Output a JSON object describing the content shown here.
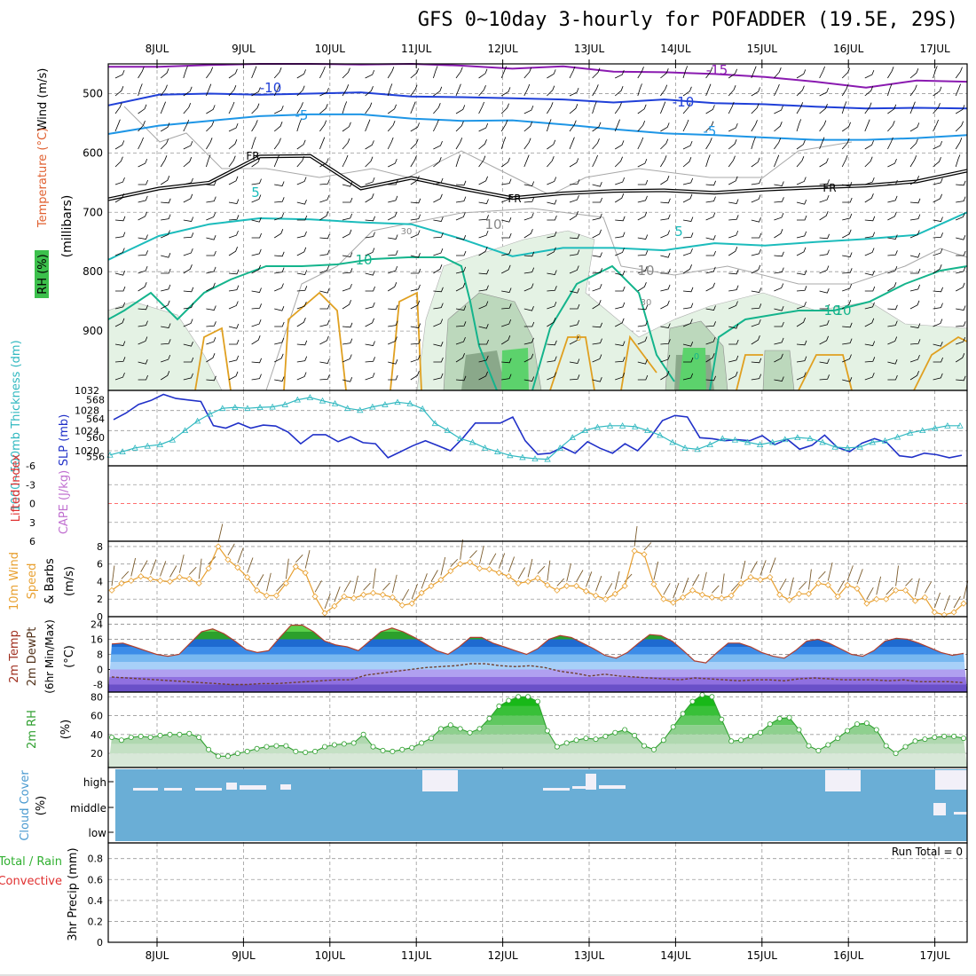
{
  "title": "GFS 0~10day 3-hourly for POFADDER (19.5E, 29S)",
  "colors": {
    "frame": "#000000",
    "grid": "#9a9a9a",
    "slp": "#2030c8",
    "thickness": "#30b8c0",
    "temp_minus15": "#8a1ab0",
    "temp_minus10": "#2040d8",
    "temp_minus5": "#1e96e6",
    "temp_plus5": "#1cbcbc",
    "temp_plus10": "#14b48c",
    "temp_warm": "#e0a020",
    "freezing": "#000000",
    "rh_light": "#e4f2e4",
    "rh_mid": "#bcd8bc",
    "rh_dark": "#8aa88a",
    "rh_sat": "#5cd26c",
    "wind_speed": "#e8a030",
    "barb": "#7a5a2a",
    "temp_line": "#b04030",
    "dewpoint": "#704030",
    "rh2m_line": "#30a030",
    "cloud_fill": "#6aaed6",
    "cloud_gap": "#f2f0f8",
    "lifted_zero": "#ff4040"
  },
  "chart_data": [
    {
      "panel": "upper_air",
      "type": "contour",
      "ylabel_parts": [
        "Wind (m/s)",
        "Temperature (°C)",
        "RH (%)"
      ],
      "ylabel_units": "(millibars)",
      "yticks": [
        500,
        600,
        700,
        800,
        900
      ],
      "ylim": [
        1000,
        450
      ],
      "contour_labels": [
        "-15",
        "-10",
        "-10",
        "-5",
        "-5",
        "FR",
        "FR",
        "FR",
        "5",
        "5",
        "10",
        "10",
        "10",
        "30",
        "30",
        "10",
        "10",
        "0",
        "0"
      ],
      "isotherms": [
        {
          "name": "-15",
          "p": [
            455,
            455,
            452,
            450,
            450,
            451,
            450,
            453,
            458,
            454,
            463,
            464,
            467,
            472,
            480,
            490,
            478,
            480
          ]
        },
        {
          "name": "-10",
          "p": [
            520,
            502,
            500,
            502,
            500,
            498,
            505,
            506,
            508,
            510,
            515,
            510,
            516,
            518,
            522,
            525,
            524,
            525
          ]
        },
        {
          "name": "-5",
          "p": [
            568,
            554,
            546,
            538,
            535,
            535,
            542,
            546,
            545,
            552,
            560,
            567,
            570,
            574,
            578,
            578,
            575,
            570
          ]
        },
        {
          "name": "FR",
          "p": [
            678,
            660,
            650,
            606,
            605,
            660,
            642,
            660,
            676,
            668,
            664,
            663,
            667,
            662,
            658,
            655,
            648,
            630
          ]
        },
        {
          "name": "5",
          "p": [
            780,
            740,
            720,
            710,
            712,
            717,
            720,
            745,
            774,
            760,
            760,
            764,
            752,
            756,
            750,
            745,
            738,
            700
          ]
        }
      ]
    },
    {
      "panel": "slp_thickness",
      "type": "line",
      "ylabel_left": "1000~500mb Thickness (dm)",
      "ylabel_right": "SLP (mb)",
      "yticks_left": [
        556,
        560,
        564,
        568
      ],
      "yticks_right": [
        1020,
        1024,
        1028,
        1032
      ],
      "ylim_left": [
        554,
        570
      ],
      "ylim_right": [
        1017,
        1032
      ],
      "series": [
        {
          "name": "SLP (mb)",
          "values": [
            1026.2,
            1027.5,
            1029.2,
            1030,
            1031.2,
            1030.4,
            1030.1,
            1029.8,
            1025,
            1024.5,
            1025.5,
            1024.5,
            1025.1,
            1024.9,
            1023.7,
            1021.4,
            1023.2,
            1023.2,
            1021.8,
            1022.8,
            1021.6,
            1021.4,
            1018.6,
            1019.8,
            1021,
            1022,
            1021,
            1020,
            1022.5,
            1025.5,
            1025.5,
            1025.5,
            1026.7,
            1022,
            1019.3,
            1019.5,
            1020.7,
            1019.5,
            1021.8,
            1020.5,
            1019.5,
            1021.4,
            1020,
            1022.6,
            1026,
            1027,
            1026.7,
            1022.6,
            1022.4,
            1022,
            1022.2,
            1022,
            1023,
            1021.2,
            1022.3,
            1020.3,
            1021.1,
            1023.1,
            1020.7,
            1019.8,
            1021.5,
            1022.4,
            1021.6,
            1019,
            1018.7,
            1019.5,
            1019.2,
            1018.6,
            1019.1
          ]
        },
        {
          "name": "Thickness (dm)",
          "values": [
            556.3,
            557,
            557.8,
            558.2,
            558.5,
            559.5,
            561.5,
            563.5,
            565,
            566.2,
            566.4,
            566.2,
            566.4,
            566.5,
            567,
            568,
            568.5,
            567.8,
            567.2,
            566.2,
            565.8,
            566.5,
            567,
            567.5,
            567.2,
            566.1,
            563,
            561.5,
            559.8,
            559,
            557.8,
            557,
            556.2,
            555.8,
            555.5,
            555.4,
            557.8,
            560,
            561.5,
            562.2,
            562.5,
            562.5,
            562.3,
            561.5,
            560.5,
            559,
            557.8,
            557.5,
            558.5,
            559.8,
            559.5,
            559,
            558.5,
            559,
            559.6,
            560,
            559.8,
            559,
            558,
            557.8,
            558,
            559,
            559.3,
            560.1,
            561,
            561.5,
            562,
            562.5,
            562.5
          ]
        }
      ]
    },
    {
      "panel": "stability",
      "type": "line",
      "ylabel_left": "Lifted Index",
      "ylabel_right": "CAPE (J/kg)",
      "yticks": [
        6,
        3,
        0,
        -3,
        -6
      ],
      "ylim": [
        -6,
        6
      ],
      "series": [
        {
          "name": "Lifted Index",
          "values": []
        }
      ]
    },
    {
      "panel": "wind10m",
      "type": "line",
      "ylabel_parts": [
        "10m Wind",
        "Speed",
        "& Barbs"
      ],
      "ylabel_units": "(m/s)",
      "yticks": [
        0,
        2,
        4,
        6,
        8
      ],
      "ylim": [
        0,
        8.6
      ],
      "series": [
        {
          "name": "10m Wind Speed",
          "values": [
            3,
            3.8,
            4.1,
            4.6,
            4.3,
            4.1,
            4,
            4.5,
            4.3,
            3.8,
            5.5,
            8,
            6.5,
            5.6,
            4.5,
            3,
            2.4,
            2.4,
            3.8,
            5.7,
            5,
            2.3,
            0.4,
            1.2,
            2.3,
            2.1,
            2.5,
            2.7,
            2.5,
            2.2,
            1.3,
            1.5,
            2.7,
            3.5,
            4.2,
            5.2,
            6,
            6.2,
            5.5,
            5.4,
            5,
            4.6,
            3.8,
            4,
            4.4,
            3.6,
            3,
            3.5,
            3.5,
            2.9,
            2.4,
            2,
            2.6,
            3.5,
            7.5,
            7.1,
            3.7,
            2,
            1.6,
            2.2,
            3,
            2.5,
            2.2,
            2.1,
            2.4,
            3.8,
            4.5,
            4.2,
            4.5,
            2.5,
            1.9,
            2.6,
            2.6,
            3.8,
            3.6,
            2.3,
            3.6,
            3.2,
            1.5,
            2,
            2,
            3,
            3,
            1.8,
            2.2,
            0.5,
            0.2,
            0.5,
            1.5
          ]
        }
      ]
    },
    {
      "panel": "temperature2m",
      "type": "area",
      "ylabel_parts": [
        "2m Temp",
        "2m DewPt",
        "(6hr Min/Max)"
      ],
      "ylabel_units": "(°C)",
      "yticks": [
        -8,
        0,
        8,
        16,
        24
      ],
      "ylim": [
        -12,
        28
      ],
      "series": [
        {
          "name": "2m Temp",
          "values": [
            13.5,
            14,
            12,
            10,
            8,
            7,
            8,
            14,
            20,
            21.5,
            19,
            15,
            10.5,
            9,
            10,
            17,
            23.5,
            23.5,
            20,
            15,
            13,
            12,
            10,
            15,
            20,
            22,
            20,
            17,
            13.5,
            10,
            8,
            12,
            17,
            17,
            14,
            12,
            10,
            8,
            11,
            16,
            18,
            17,
            14,
            11,
            7.5,
            6,
            9,
            14,
            18.5,
            18,
            15,
            10,
            4.5,
            3.5,
            9,
            14,
            14,
            12,
            9,
            7,
            6,
            10,
            15,
            16,
            14,
            11,
            8,
            7,
            10,
            15,
            16.5,
            16,
            14,
            11.5,
            9,
            7.5,
            8.5
          ]
        },
        {
          "name": "2m DewPt",
          "values": [
            -4,
            -4.5,
            -5,
            -5.5,
            -6,
            -6.5,
            -7,
            -7.5,
            -8,
            -8,
            -7.5,
            -7.5,
            -7,
            -6.5,
            -6,
            -5.5,
            -5.5,
            -3,
            -2,
            -1,
            0,
            1,
            1.5,
            2,
            3,
            3,
            2,
            1.5,
            2,
            1,
            -1,
            -2,
            -3.5,
            -2.5,
            -3.5,
            -4,
            -4.5,
            -5,
            -5.5,
            -4.5,
            -5,
            -5.5,
            -6,
            -5.5,
            -5.5,
            -6,
            -5,
            -4.5,
            -5,
            -5.5,
            -5.5,
            -5.5,
            -6,
            -5.5,
            -6.5,
            -6.5,
            -6.5,
            -7
          ]
        }
      ]
    },
    {
      "panel": "rh2m",
      "type": "area",
      "ylabel_parts": [
        "2m RH"
      ],
      "ylabel_units": "(%)",
      "yticks": [
        20,
        40,
        60,
        80
      ],
      "ylim": [
        5,
        85
      ],
      "series": [
        {
          "name": "2m RH",
          "values": [
            37,
            34,
            37,
            38,
            37,
            39,
            40,
            40,
            41,
            37,
            24,
            17,
            17,
            20,
            22,
            25,
            27,
            28,
            28,
            22,
            21,
            22,
            27,
            29,
            30,
            31,
            40,
            27,
            23,
            22,
            24,
            26,
            31,
            36,
            46,
            50,
            46,
            42,
            46,
            57,
            70,
            76,
            80,
            80,
            75,
            44,
            27,
            31,
            34,
            36,
            35,
            38,
            42,
            45,
            39,
            28,
            24,
            34,
            48,
            62,
            75,
            82,
            80,
            56,
            33,
            34,
            38,
            42,
            51,
            57,
            58,
            45,
            28,
            23,
            29,
            36,
            44,
            51,
            52,
            45,
            28,
            20,
            27,
            33,
            35,
            37,
            38,
            38,
            36
          ]
        }
      ]
    },
    {
      "panel": "cloud_cover",
      "type": "heatmap",
      "ylabel_parts": [
        "Cloud Cover"
      ],
      "ylabel_units": "(%)",
      "levels": [
        "high",
        "middle",
        "low"
      ]
    },
    {
      "panel": "precip",
      "type": "bar",
      "ylabel_parts": [
        "Total / Rain",
        "Convective"
      ],
      "ylabel_units": "3hr Precip (mm)",
      "yticks": [
        0,
        0.2,
        0.4,
        0.6,
        0.8
      ],
      "ylim": [
        0,
        0.95
      ],
      "run_total_label": "Run Total = 0",
      "values": []
    }
  ],
  "x_axis": {
    "tick_labels": [
      "8JUL",
      "9JUL",
      "10JUL",
      "11JUL",
      "12JUL",
      "13JUL",
      "14JUL",
      "15JUL",
      "16JUL",
      "17JUL"
    ]
  }
}
